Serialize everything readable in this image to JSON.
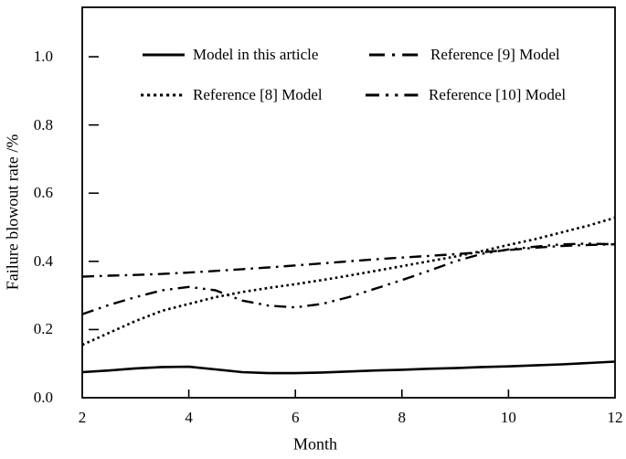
{
  "figure": {
    "background": "#ffffff",
    "ink_color": "#000000"
  },
  "chart_data": {
    "type": "line",
    "title": "",
    "xlabel": "Month",
    "ylabel": "Failure blowout rate /%",
    "xlim": [
      2,
      12
    ],
    "ylim": [
      0,
      1.145
    ],
    "grid": false,
    "legend_position": "top-inside-two-columns",
    "xticks": [
      2,
      4,
      6,
      8,
      10,
      12
    ],
    "xtick_labels": [
      "2",
      "4",
      "6",
      "8",
      "10",
      "12"
    ],
    "yticks": [
      0.0,
      0.2,
      0.4,
      0.6,
      0.8,
      1.0
    ],
    "ytick_labels": [
      "0.0",
      "0.2",
      "0.4",
      "0.6",
      "0.8",
      "1.0"
    ],
    "x": [
      2,
      2.5,
      3,
      3.5,
      4,
      4.5,
      5,
      5.5,
      6,
      6.5,
      7,
      7.5,
      8,
      8.5,
      9,
      9.5,
      10,
      10.5,
      11,
      11.5,
      12
    ],
    "series": [
      {
        "name": "Model in this article",
        "style": "solid",
        "color": "#000000",
        "values": [
          0.075,
          0.08,
          0.086,
          0.09,
          0.091,
          0.083,
          0.075,
          0.072,
          0.072,
          0.074,
          0.077,
          0.08,
          0.082,
          0.085,
          0.087,
          0.09,
          0.092,
          0.095,
          0.098,
          0.102,
          0.106
        ]
      },
      {
        "name": "Reference [8] Model",
        "style": "dotted",
        "color": "#000000",
        "values": [
          0.155,
          0.19,
          0.225,
          0.255,
          0.275,
          0.295,
          0.31,
          0.322,
          0.333,
          0.345,
          0.358,
          0.372,
          0.386,
          0.4,
          0.414,
          0.43,
          0.448,
          0.465,
          0.485,
          0.505,
          0.528
        ]
      },
      {
        "name": "Reference [9] Model",
        "style": "dashdot",
        "color": "#000000",
        "values": [
          0.355,
          0.358,
          0.36,
          0.363,
          0.367,
          0.372,
          0.377,
          0.382,
          0.388,
          0.394,
          0.4,
          0.406,
          0.411,
          0.416,
          0.421,
          0.427,
          0.433,
          0.44,
          0.445,
          0.448,
          0.45
        ]
      },
      {
        "name": "Reference [10] Model",
        "style": "dashdotdot",
        "color": "#000000",
        "values": [
          0.245,
          0.272,
          0.295,
          0.315,
          0.325,
          0.315,
          0.285,
          0.27,
          0.265,
          0.275,
          0.295,
          0.32,
          0.345,
          0.372,
          0.4,
          0.422,
          0.435,
          0.443,
          0.45,
          0.452,
          0.45
        ]
      }
    ]
  }
}
